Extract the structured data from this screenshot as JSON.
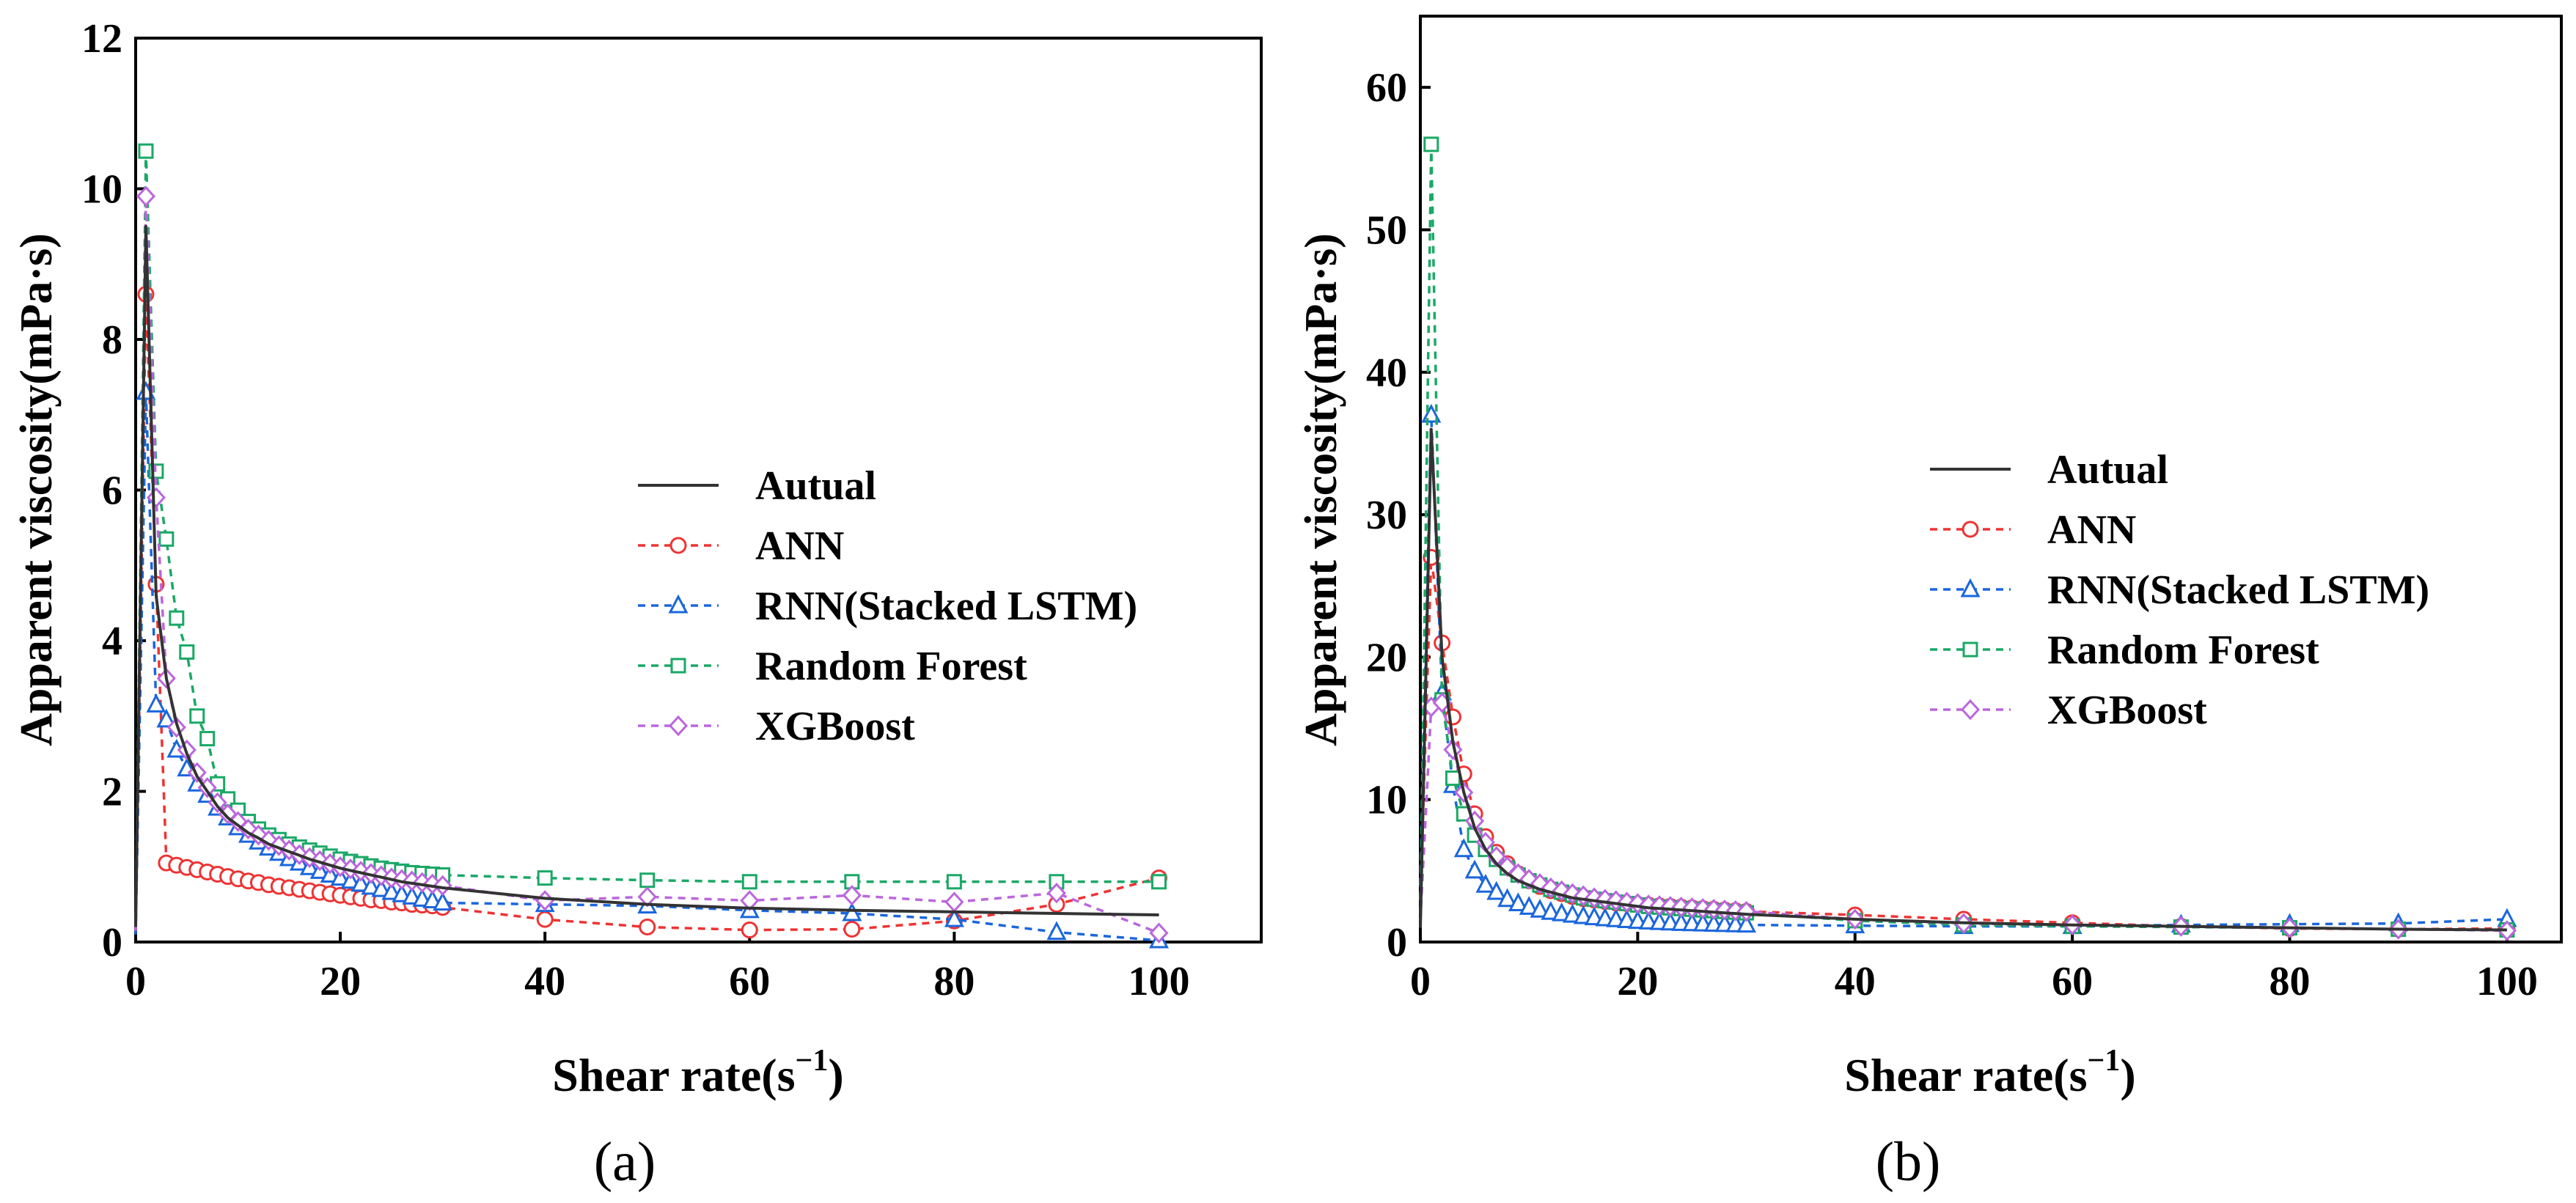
{
  "chart_data": [
    {
      "id": "a",
      "type": "line",
      "panel_label": "(a)",
      "xlabel_main": "Shear rate(s",
      "xlabel_sup": "−1",
      "xlabel_close": ")",
      "ylabel": "Apparent viscosity(mPa·s)",
      "xlim": [
        0,
        110
      ],
      "ylim": [
        0,
        12
      ],
      "xticks": [
        0,
        20,
        40,
        60,
        80,
        100
      ],
      "yticks": [
        0,
        2,
        4,
        6,
        8,
        10,
        12
      ],
      "legend_position": "right-center",
      "series": [
        {
          "name": "Autual",
          "style": "actual",
          "color": "#333333",
          "x": [
            0,
            1,
            2,
            3,
            4,
            5,
            6,
            7,
            8,
            9,
            10,
            11,
            12,
            13,
            14,
            15,
            16,
            17,
            18,
            19,
            20,
            21,
            22,
            23,
            24,
            25,
            26,
            27,
            28,
            29,
            30,
            40,
            50,
            60,
            70,
            80,
            90,
            100
          ],
          "y": [
            0.2,
            9.5,
            4.6,
            3.5,
            2.9,
            2.5,
            2.2,
            2.0,
            1.8,
            1.65,
            1.55,
            1.45,
            1.38,
            1.3,
            1.25,
            1.2,
            1.15,
            1.1,
            1.06,
            1.02,
            0.98,
            0.95,
            0.92,
            0.89,
            0.86,
            0.83,
            0.8,
            0.78,
            0.76,
            0.74,
            0.72,
            0.58,
            0.5,
            0.45,
            0.42,
            0.4,
            0.38,
            0.36
          ]
        },
        {
          "name": "ANN",
          "style": "circle",
          "color": "#ee3333",
          "x": [
            0,
            1,
            2,
            3,
            4,
            5,
            6,
            7,
            8,
            9,
            10,
            11,
            12,
            13,
            14,
            15,
            16,
            17,
            18,
            19,
            20,
            21,
            22,
            23,
            24,
            25,
            26,
            27,
            28,
            29,
            30,
            40,
            50,
            60,
            70,
            80,
            90,
            100
          ],
          "y": [
            0.15,
            8.6,
            4.75,
            1.05,
            1.02,
            0.99,
            0.96,
            0.93,
            0.9,
            0.87,
            0.84,
            0.81,
            0.79,
            0.76,
            0.74,
            0.72,
            0.7,
            0.68,
            0.66,
            0.64,
            0.62,
            0.6,
            0.58,
            0.56,
            0.55,
            0.53,
            0.52,
            0.5,
            0.49,
            0.48,
            0.46,
            0.3,
            0.2,
            0.16,
            0.17,
            0.28,
            0.5,
            0.85
          ]
        },
        {
          "name": "RNN(Stacked LSTM)",
          "style": "triangle",
          "color": "#1a66dd",
          "x": [
            0,
            1,
            2,
            3,
            4,
            5,
            6,
            7,
            8,
            9,
            10,
            11,
            12,
            13,
            14,
            15,
            16,
            17,
            18,
            19,
            20,
            21,
            22,
            23,
            24,
            25,
            26,
            27,
            28,
            29,
            30,
            40,
            50,
            60,
            70,
            80,
            90,
            100
          ],
          "y": [
            0.1,
            7.3,
            3.15,
            2.95,
            2.55,
            2.3,
            2.1,
            1.95,
            1.78,
            1.65,
            1.52,
            1.42,
            1.33,
            1.25,
            1.18,
            1.11,
            1.05,
            0.99,
            0.94,
            0.89,
            0.85,
            0.81,
            0.77,
            0.73,
            0.7,
            0.66,
            0.63,
            0.6,
            0.57,
            0.55,
            0.52,
            0.5,
            0.48,
            0.42,
            0.38,
            0.3,
            0.13,
            0.02
          ]
        },
        {
          "name": "Random Forest",
          "style": "square",
          "color": "#1aa866",
          "x": [
            0,
            1,
            2,
            3,
            4,
            5,
            6,
            7,
            8,
            9,
            10,
            11,
            12,
            13,
            14,
            15,
            16,
            17,
            18,
            19,
            20,
            21,
            22,
            23,
            24,
            25,
            26,
            27,
            28,
            29,
            30,
            40,
            50,
            60,
            70,
            80,
            90,
            100
          ],
          "y": [
            0.3,
            10.5,
            6.25,
            5.35,
            4.3,
            3.85,
            3.0,
            2.7,
            2.1,
            1.9,
            1.75,
            1.6,
            1.5,
            1.42,
            1.36,
            1.3,
            1.26,
            1.22,
            1.18,
            1.14,
            1.1,
            1.07,
            1.04,
            1.01,
            0.98,
            0.96,
            0.94,
            0.92,
            0.91,
            0.9,
            0.89,
            0.85,
            0.82,
            0.8,
            0.8,
            0.8,
            0.8,
            0.8
          ]
        },
        {
          "name": "XGBoost",
          "style": "diamond",
          "color": "#bb66dd",
          "x": [
            0,
            1,
            2,
            3,
            4,
            5,
            6,
            7,
            8,
            9,
            10,
            11,
            12,
            13,
            14,
            15,
            16,
            17,
            18,
            19,
            20,
            21,
            22,
            23,
            24,
            25,
            26,
            27,
            28,
            29,
            30,
            40,
            50,
            60,
            70,
            80,
            90,
            100
          ],
          "y": [
            0.15,
            9.9,
            5.9,
            3.5,
            2.85,
            2.55,
            2.25,
            2.05,
            1.85,
            1.7,
            1.6,
            1.5,
            1.42,
            1.35,
            1.28,
            1.22,
            1.16,
            1.12,
            1.08,
            1.04,
            1.0,
            0.97,
            0.94,
            0.91,
            0.88,
            0.85,
            0.83,
            0.81,
            0.79,
            0.77,
            0.75,
            0.55,
            0.6,
            0.55,
            0.62,
            0.53,
            0.65,
            0.12
          ]
        }
      ]
    },
    {
      "id": "b",
      "type": "line",
      "panel_label": "(b)",
      "xlabel_main": "Shear rate(s",
      "xlabel_sup": "−1",
      "xlabel_close": ")",
      "ylabel": "Apparent viscosity(mPa·s)",
      "xlim": [
        0,
        105
      ],
      "ylim": [
        0,
        65
      ],
      "xticks": [
        0,
        20,
        40,
        60,
        80,
        100
      ],
      "yticks": [
        0,
        10,
        20,
        30,
        40,
        50,
        60
      ],
      "legend_position": "right-center",
      "series": [
        {
          "name": "Autual",
          "style": "actual",
          "color": "#333333",
          "x": [
            0,
            1,
            2,
            3,
            4,
            5,
            6,
            7,
            8,
            9,
            10,
            11,
            12,
            13,
            14,
            15,
            16,
            17,
            18,
            19,
            20,
            21,
            22,
            23,
            24,
            25,
            26,
            27,
            28,
            29,
            30,
            40,
            50,
            60,
            70,
            80,
            90,
            100
          ],
          "y": [
            1,
            36,
            20,
            14,
            10.5,
            8,
            6.5,
            5.5,
            4.8,
            4.3,
            4,
            3.7,
            3.5,
            3.3,
            3.1,
            3.0,
            2.9,
            2.8,
            2.7,
            2.6,
            2.5,
            2.4,
            2.35,
            2.3,
            2.25,
            2.2,
            2.15,
            2.1,
            2.05,
            2.0,
            1.95,
            1.6,
            1.35,
            1.2,
            1.1,
            1.0,
            0.9,
            0.85
          ]
        },
        {
          "name": "ANN",
          "style": "circle",
          "color": "#ee3333",
          "x": [
            0,
            1,
            2,
            3,
            4,
            5,
            6,
            7,
            8,
            9,
            10,
            11,
            12,
            13,
            14,
            15,
            16,
            17,
            18,
            19,
            20,
            21,
            22,
            23,
            24,
            25,
            26,
            27,
            28,
            29,
            30,
            40,
            50,
            60,
            70,
            80,
            90,
            100
          ],
          "y": [
            3,
            27,
            21,
            15.8,
            11.8,
            9,
            7.4,
            6.3,
            5.5,
            4.8,
            4.3,
            3.9,
            3.6,
            3.4,
            3.2,
            3.05,
            2.95,
            2.85,
            2.75,
            2.7,
            2.65,
            2.6,
            2.55,
            2.5,
            2.45,
            2.4,
            2.35,
            2.3,
            2.25,
            2.2,
            2.15,
            1.9,
            1.6,
            1.35,
            1.1,
            0.95,
            0.9,
            0.95
          ]
        },
        {
          "name": "RNN(Stacked LSTM)",
          "style": "triangle",
          "color": "#1a66dd",
          "x": [
            0,
            1,
            2,
            3,
            4,
            5,
            6,
            7,
            8,
            9,
            10,
            11,
            12,
            13,
            14,
            15,
            16,
            17,
            18,
            19,
            20,
            21,
            22,
            23,
            24,
            25,
            26,
            27,
            28,
            29,
            30,
            40,
            50,
            60,
            70,
            80,
            90,
            100
          ],
          "y": [
            4,
            37,
            17.5,
            11,
            6.5,
            5,
            4,
            3.5,
            3.0,
            2.7,
            2.45,
            2.25,
            2.1,
            2.0,
            1.9,
            1.8,
            1.72,
            1.65,
            1.58,
            1.52,
            1.46,
            1.42,
            1.38,
            1.35,
            1.32,
            1.3,
            1.28,
            1.26,
            1.24,
            1.22,
            1.2,
            1.15,
            1.1,
            1.1,
            1.2,
            1.25,
            1.3,
            1.6
          ]
        },
        {
          "name": "Random Forest",
          "style": "square",
          "color": "#1aa866",
          "x": [
            0,
            1,
            2,
            3,
            4,
            5,
            6,
            7,
            8,
            9,
            10,
            11,
            12,
            13,
            14,
            15,
            16,
            17,
            18,
            19,
            20,
            21,
            22,
            23,
            24,
            25,
            26,
            27,
            28,
            29,
            30,
            40,
            50,
            60,
            70,
            80,
            90,
            100
          ],
          "y": [
            2,
            56,
            17,
            11.5,
            9,
            7.5,
            6.5,
            5.8,
            5.2,
            4.7,
            4.3,
            4.0,
            3.7,
            3.5,
            3.3,
            3.1,
            3.0,
            2.9,
            2.8,
            2.7,
            2.6,
            2.5,
            2.45,
            2.4,
            2.35,
            2.3,
            2.25,
            2.2,
            2.15,
            2.1,
            2.05,
            1.5,
            1.2,
            1.1,
            1.05,
            1.0,
            0.9,
            0.85
          ]
        },
        {
          "name": "XGBoost",
          "style": "diamond",
          "color": "#bb66dd",
          "x": [
            0,
            1,
            2,
            3,
            4,
            5,
            6,
            7,
            8,
            9,
            10,
            11,
            12,
            13,
            14,
            15,
            16,
            17,
            18,
            19,
            20,
            21,
            22,
            23,
            24,
            25,
            26,
            27,
            28,
            29,
            30,
            40,
            50,
            60,
            70,
            80,
            90,
            100
          ],
          "y": [
            1.5,
            16.5,
            16.8,
            13.5,
            10.5,
            8.5,
            7.0,
            6.0,
            5.3,
            4.8,
            4.4,
            4.1,
            3.8,
            3.6,
            3.4,
            3.25,
            3.1,
            3.0,
            2.9,
            2.8,
            2.7,
            2.6,
            2.55,
            2.5,
            2.45,
            2.4,
            2.35,
            2.3,
            2.25,
            2.2,
            2.15,
            1.6,
            1.3,
            1.2,
            1.1,
            1.0,
            0.9,
            0.8
          ]
        }
      ]
    }
  ]
}
